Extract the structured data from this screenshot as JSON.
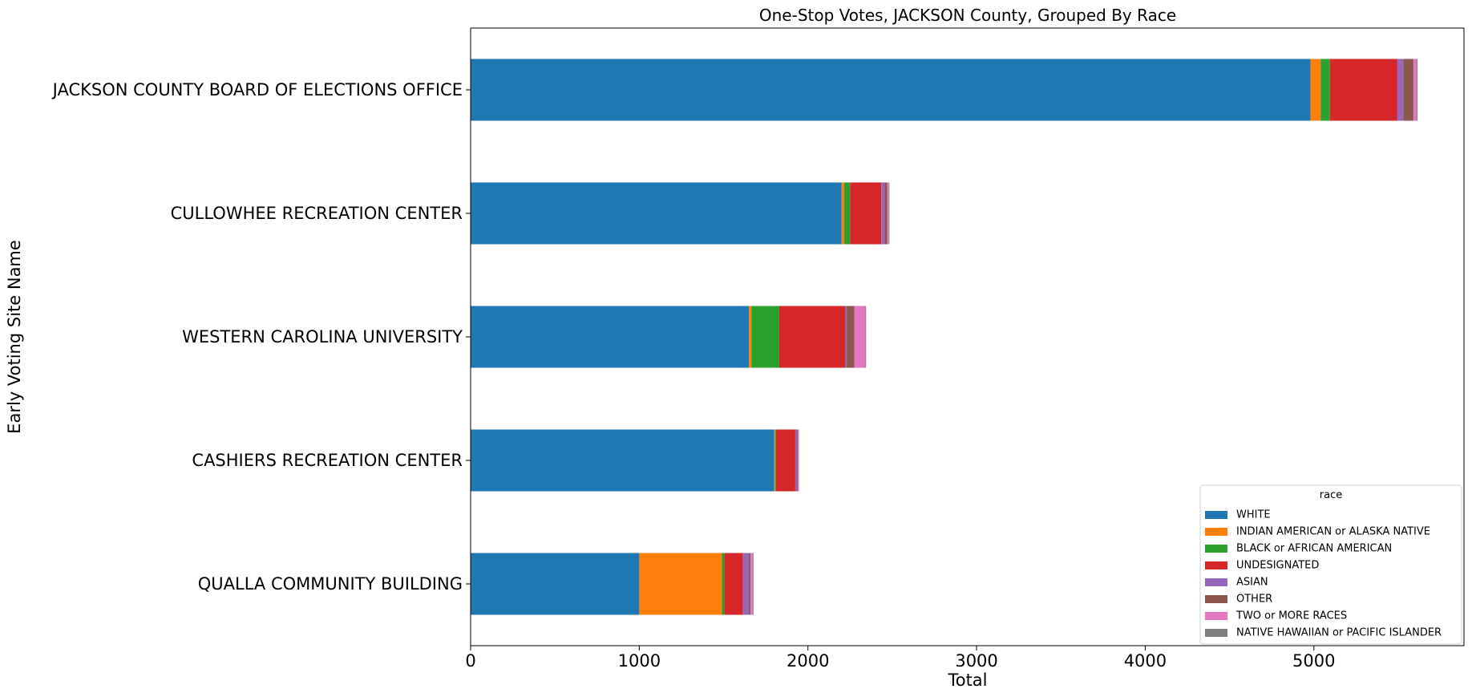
{
  "chart_data": {
    "type": "bar",
    "orientation": "horizontal",
    "stacked": true,
    "title": "One-Stop Votes, JACKSON County, Grouped By Race",
    "xlabel": "Total",
    "ylabel": "Early Voting Site Name",
    "xlim": [
      0,
      5890
    ],
    "xticks": [
      0,
      1000,
      2000,
      3000,
      4000,
      5000
    ],
    "categories": [
      "JACKSON COUNTY BOARD OF ELECTIONS OFFICE",
      "CULLOWHEE RECREATION CENTER",
      "WESTERN CAROLINA UNIVERSITY",
      "CASHIERS RECREATION CENTER",
      "QUALLA COMMUNITY BUILDING"
    ],
    "series": [
      {
        "name": "WHITE",
        "color": "#1f77b4",
        "values": [
          4980,
          2200,
          1650,
          1800,
          1000
        ]
      },
      {
        "name": "INDIAN AMERICAN or ALASKA NATIVE",
        "color": "#ff7f0e",
        "values": [
          60,
          15,
          15,
          5,
          490
        ]
      },
      {
        "name": "BLACK or AFRICAN AMERICAN",
        "color": "#2ca02c",
        "values": [
          55,
          35,
          165,
          5,
          15
        ]
      },
      {
        "name": "UNDESIGNATED",
        "color": "#d62728",
        "values": [
          400,
          185,
          390,
          115,
          110
        ]
      },
      {
        "name": "ASIAN",
        "color": "#9467bd",
        "values": [
          35,
          20,
          10,
          10,
          35
        ]
      },
      {
        "name": "OTHER",
        "color": "#8c564b",
        "values": [
          60,
          15,
          45,
          5,
          10
        ]
      },
      {
        "name": "TWO or MORE RACES",
        "color": "#e377c2",
        "values": [
          20,
          10,
          65,
          5,
          15
        ]
      },
      {
        "name": "NATIVE HAWAIIAN or PACIFIC ISLANDER",
        "color": "#7f7f7f",
        "values": [
          5,
          3,
          5,
          2,
          3
        ]
      }
    ],
    "legend": {
      "title": "race",
      "placement": "lower-right"
    },
    "grid": false
  }
}
